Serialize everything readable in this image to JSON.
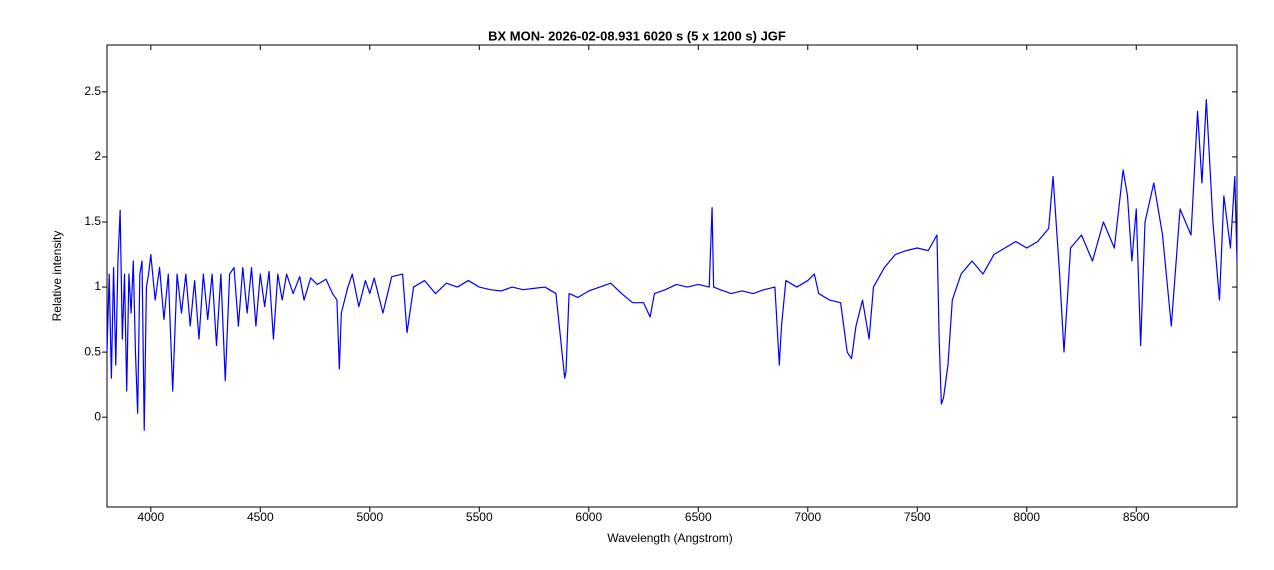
{
  "chart_data": {
    "type": "line",
    "title": "BX MON-   2026-02-08.931   6020 s (5 x 1200 s)   JGF",
    "x_label": "Wavelength (Angstrom)",
    "y_label": "Relative intensity",
    "color": "#0000ff",
    "xlim": [
      3800,
      8960
    ],
    "ylim": [
      -0.69,
      2.86
    ],
    "xticks": [
      4000,
      4500,
      5000,
      5500,
      6000,
      6500,
      7000,
      7500,
      8000,
      8500
    ],
    "yticks": [
      0,
      0.5,
      1,
      1.5,
      2,
      2.5
    ],
    "x": [
      3800,
      3810,
      3820,
      3830,
      3840,
      3850,
      3860,
      3870,
      3880,
      3890,
      3900,
      3910,
      3920,
      3930,
      3940,
      3950,
      3960,
      3970,
      3980,
      3990,
      4000,
      4020,
      4040,
      4060,
      4080,
      4100,
      4120,
      4140,
      4160,
      4180,
      4200,
      4220,
      4240,
      4260,
      4280,
      4300,
      4320,
      4340,
      4360,
      4380,
      4400,
      4420,
      4440,
      4460,
      4480,
      4500,
      4520,
      4540,
      4560,
      4580,
      4600,
      4620,
      4650,
      4680,
      4700,
      4730,
      4760,
      4800,
      4830,
      4850,
      4861,
      4870,
      4900,
      4920,
      4950,
      4980,
      5000,
      5020,
      5060,
      5100,
      5150,
      5170,
      5200,
      5250,
      5300,
      5350,
      5400,
      5450,
      5500,
      5550,
      5600,
      5650,
      5700,
      5750,
      5800,
      5850,
      5890,
      5896,
      5910,
      5950,
      6000,
      6050,
      6100,
      6150,
      6200,
      6250,
      6280,
      6300,
      6350,
      6400,
      6450,
      6500,
      6550,
      6563,
      6570,
      6600,
      6650,
      6700,
      6750,
      6800,
      6850,
      6870,
      6880,
      6900,
      6950,
      7000,
      7030,
      7050,
      7100,
      7150,
      7180,
      7200,
      7220,
      7250,
      7280,
      7300,
      7350,
      7400,
      7450,
      7500,
      7550,
      7590,
      7600,
      7610,
      7620,
      7640,
      7660,
      7700,
      7750,
      7800,
      7850,
      7900,
      7950,
      8000,
      8050,
      8100,
      8120,
      8150,
      8170,
      8200,
      8250,
      8300,
      8350,
      8400,
      8440,
      8460,
      8480,
      8500,
      8520,
      8540,
      8580,
      8620,
      8660,
      8700,
      8750,
      8780,
      8800,
      8820,
      8850,
      8880,
      8900,
      8930,
      8950,
      8960
    ],
    "values": [
      0.5,
      1.1,
      0.3,
      1.15,
      0.4,
      1.2,
      1.59,
      0.6,
      1.1,
      0.2,
      1.1,
      0.8,
      1.2,
      0.5,
      0.03,
      1.1,
      1.2,
      -0.1,
      1.0,
      1.1,
      1.25,
      0.9,
      1.15,
      0.75,
      1.1,
      0.2,
      1.1,
      0.8,
      1.1,
      0.7,
      1.05,
      0.6,
      1.1,
      0.75,
      1.1,
      0.55,
      1.1,
      0.28,
      1.1,
      1.15,
      0.7,
      1.15,
      0.8,
      1.15,
      0.7,
      1.1,
      0.85,
      1.12,
      0.6,
      1.1,
      0.9,
      1.1,
      0.95,
      1.08,
      0.9,
      1.07,
      1.02,
      1.06,
      0.95,
      0.9,
      0.37,
      0.8,
      1.0,
      1.1,
      0.85,
      1.05,
      0.95,
      1.07,
      0.8,
      1.08,
      1.1,
      0.65,
      1.0,
      1.05,
      0.95,
      1.03,
      1.0,
      1.05,
      1.0,
      0.98,
      0.97,
      1.0,
      0.98,
      0.99,
      1.0,
      0.95,
      0.3,
      0.35,
      0.95,
      0.92,
      0.97,
      1.0,
      1.03,
      0.95,
      0.88,
      0.88,
      0.77,
      0.95,
      0.98,
      1.02,
      1.0,
      1.02,
      1.0,
      1.61,
      1.0,
      0.98,
      0.95,
      0.97,
      0.95,
      0.98,
      1.0,
      0.4,
      0.7,
      1.05,
      1.0,
      1.05,
      1.1,
      0.95,
      0.9,
      0.88,
      0.5,
      0.45,
      0.7,
      0.9,
      0.6,
      1.0,
      1.15,
      1.25,
      1.28,
      1.3,
      1.28,
      1.4,
      0.6,
      0.1,
      0.15,
      0.4,
      0.9,
      1.1,
      1.2,
      1.1,
      1.25,
      1.3,
      1.35,
      1.3,
      1.35,
      1.45,
      1.85,
      1.1,
      0.5,
      1.3,
      1.4,
      1.2,
      1.5,
      1.3,
      1.9,
      1.7,
      1.2,
      1.6,
      0.55,
      1.5,
      1.8,
      1.4,
      0.7,
      1.6,
      1.4,
      2.35,
      1.8,
      2.44,
      1.5,
      0.9,
      1.7,
      1.3,
      1.85,
      1.2
    ]
  }
}
